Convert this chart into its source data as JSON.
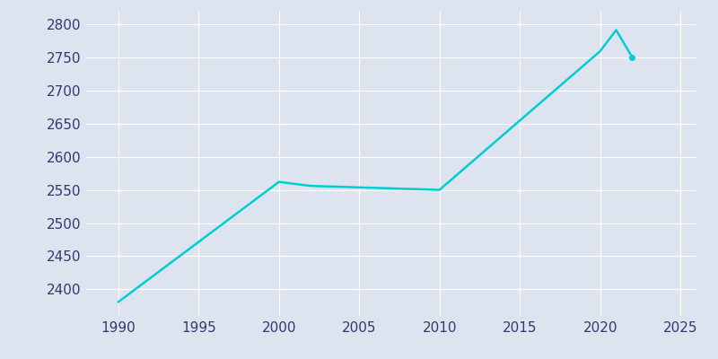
{
  "years": [
    1990,
    2000,
    2002,
    2010,
    2020,
    2021,
    2022
  ],
  "population": [
    2381,
    2562,
    2556,
    2550,
    2759,
    2791,
    2750
  ],
  "line_color": "#00CED1",
  "bg_color": "#DDE4EF",
  "xlim": [
    1988,
    2026
  ],
  "ylim": [
    2360,
    2820
  ],
  "xticks": [
    1990,
    1995,
    2000,
    2005,
    2010,
    2015,
    2020,
    2025
  ],
  "yticks": [
    2400,
    2450,
    2500,
    2550,
    2600,
    2650,
    2700,
    2750,
    2800
  ],
  "linewidth": 1.8,
  "grid_color": "#FFFFFF",
  "tick_color": "#2E3B6E",
  "tick_fontsize": 11,
  "marker_color": "#00CED1",
  "marker_size": 4
}
